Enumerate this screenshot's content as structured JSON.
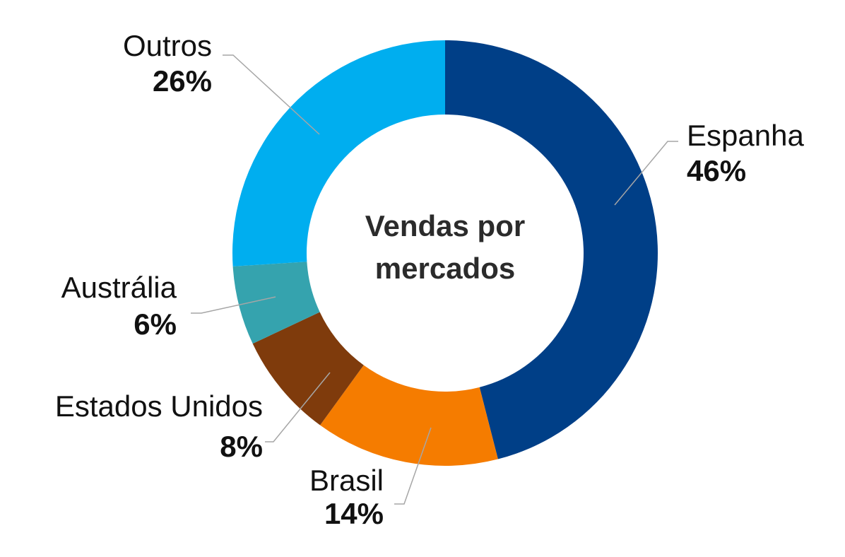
{
  "chart_data": {
    "type": "donut",
    "title": "Vendas por mercados",
    "categories": [
      "Espanha",
      "Brasil",
      "Estados Unidos",
      "Austrália",
      "Outros"
    ],
    "values": [
      46,
      14,
      8,
      6,
      26
    ],
    "value_labels": [
      "46%",
      "14%",
      "8%",
      "6%",
      "26%"
    ],
    "colors": [
      "#003f87",
      "#f57c00",
      "#7f3b0c",
      "#35a3ae",
      "#00aeef"
    ]
  }
}
